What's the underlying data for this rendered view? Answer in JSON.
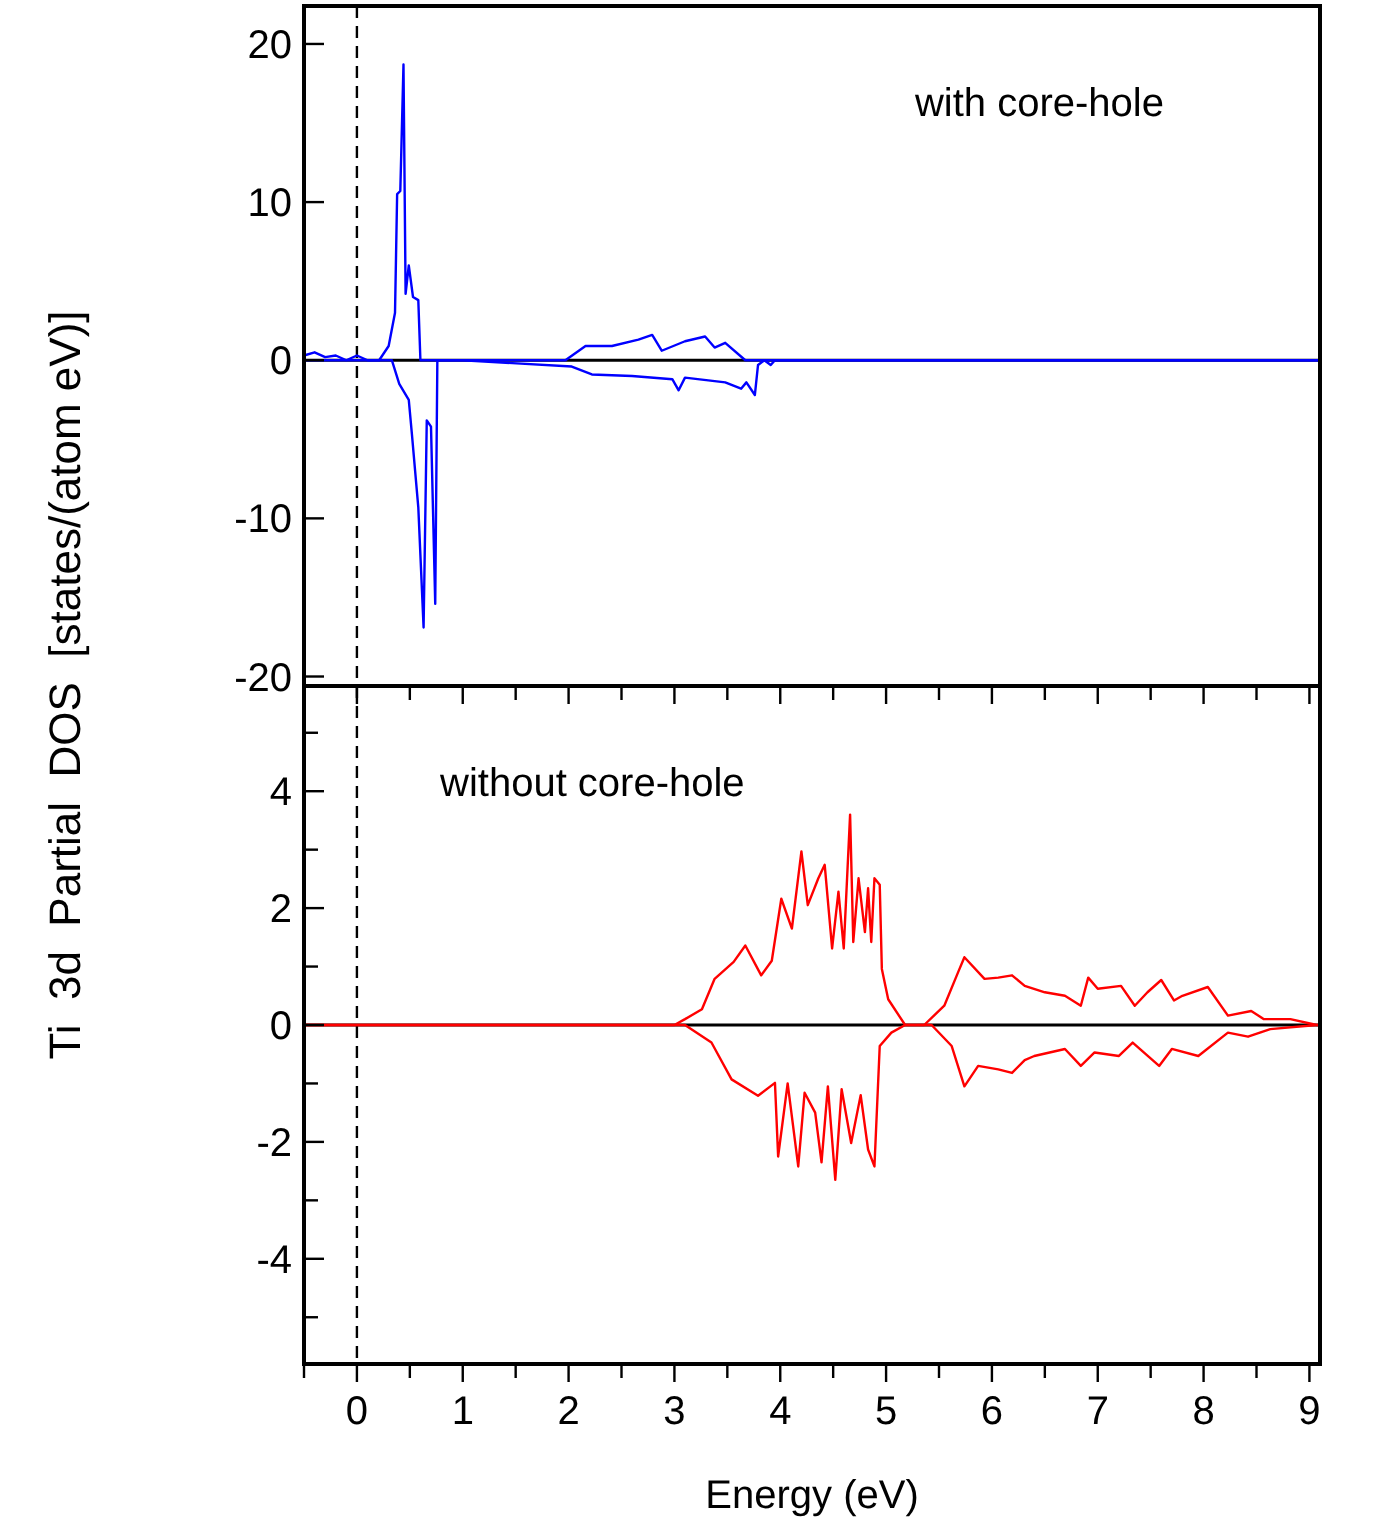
{
  "chart_data": [
    {
      "type": "line",
      "ylabel": "Ti  3d  Partial  DOS  [states/(atom eV)]",
      "annotations": [
        "with core-hole"
      ],
      "xlim": [
        -0.5,
        9.1
      ],
      "ylim": [
        -20.6,
        22.4
      ],
      "tick_labels": "y",
      "grid": false,
      "marker": "none",
      "line_style": "solid",
      "xticks": [
        {
          "value": -0.5,
          "label": null
        },
        0,
        {
          "value": 0.5,
          "label": null
        },
        1,
        {
          "value": 1.5,
          "label": null
        },
        2,
        {
          "value": 2.5,
          "label": null
        },
        3,
        {
          "value": 3.5,
          "label": null
        },
        4,
        {
          "value": 4.5,
          "label": null
        },
        5,
        {
          "value": 5.5,
          "label": null
        },
        6,
        {
          "value": 6.5,
          "label": null
        },
        7,
        {
          "value": 7.5,
          "label": null
        },
        8,
        {
          "value": 8.5,
          "label": null
        },
        9
      ],
      "yticks": [
        -20,
        -10,
        0,
        10,
        20
      ],
      "ref_lines": [
        {
          "axis": "x",
          "value": 0,
          "label": null,
          "color": "#000000",
          "line_style": "dashed"
        },
        {
          "axis": "y",
          "value": 0,
          "label": null,
          "color": "#000000",
          "line_style": "solid"
        }
      ],
      "series": [
        {
          "color": "#0000ff",
          "x": [
            -0.5,
            -0.4,
            -0.3,
            -0.2,
            -0.1,
            0,
            0.1,
            0.21,
            0.3,
            0.36,
            0.38,
            0.41,
            0.44,
            0.46,
            0.49,
            0.53,
            0.58,
            0.6,
            1.0,
            1.97,
            2.16,
            2.41,
            2.66,
            2.79,
            2.88,
            3.1,
            3.29,
            3.38,
            3.48,
            3.67,
            9.1
          ],
          "values": [
            0.3,
            0.5,
            0.2,
            0.3,
            0,
            0.3,
            0,
            0,
            0.9,
            3,
            10.5,
            10.7,
            18.7,
            4.2,
            6,
            4,
            3.8,
            0,
            0,
            0,
            0.9,
            0.9,
            1.3,
            1.6,
            0.6,
            1.2,
            1.5,
            0.8,
            1.1,
            0,
            0
          ]
        },
        {
          "color": "#0000ff",
          "x": [
            -0.5,
            0.33,
            0.4,
            0.49,
            0.52,
            0.58,
            0.63,
            0.66,
            0.7,
            0.74,
            0.76,
            1.0,
            2.03,
            2.22,
            2.6,
            2.98,
            3.04,
            3.1,
            3.48,
            3.63,
            3.68,
            3.76,
            3.79,
            3.85,
            3.91,
            3.95,
            9.1
          ],
          "values": [
            0,
            0,
            -1.5,
            -2.5,
            -4.7,
            -9.3,
            -16.9,
            -3.8,
            -4.2,
            -15.4,
            0,
            0,
            -0.4,
            -0.9,
            -1.0,
            -1.2,
            -1.9,
            -1.1,
            -1.4,
            -1.8,
            -1.4,
            -2.2,
            -0.3,
            0,
            -0.3,
            0,
            0
          ]
        }
      ]
    },
    {
      "type": "line",
      "xlabel": "Energy (eV)",
      "annotations": [
        "without core-hole"
      ],
      "xlim": [
        -0.5,
        9.1
      ],
      "ylim": [
        -5.8,
        5.8
      ],
      "grid": false,
      "marker": "none",
      "line_style": "solid",
      "xticks": [
        {
          "value": -0.5,
          "label": null
        },
        0,
        {
          "value": 0.5,
          "label": null
        },
        1,
        {
          "value": 1.5,
          "label": null
        },
        2,
        {
          "value": 2.5,
          "label": null
        },
        3,
        {
          "value": 3.5,
          "label": null
        },
        4,
        {
          "value": 4.5,
          "label": null
        },
        5,
        {
          "value": 5.5,
          "label": null
        },
        6,
        {
          "value": 6.5,
          "label": null
        },
        7,
        {
          "value": 7.5,
          "label": null
        },
        8,
        {
          "value": 8.5,
          "label": null
        },
        9
      ],
      "yticks": [
        {
          "value": -5,
          "label": null
        },
        -4,
        {
          "value": -3,
          "label": null
        },
        -2,
        {
          "value": -1,
          "label": null
        },
        0,
        {
          "value": 1,
          "label": null
        },
        2,
        {
          "value": 3,
          "label": null
        },
        4,
        {
          "value": 5,
          "label": null
        }
      ],
      "ref_lines": [
        {
          "axis": "x",
          "value": 0,
          "label": null,
          "color": "#000000",
          "line_style": "dashed"
        },
        {
          "axis": "y",
          "value": 0,
          "label": null,
          "color": "#000000",
          "line_style": "solid"
        }
      ],
      "series": [
        {
          "color": "#ff0000",
          "x": [
            -0.5,
            3.0,
            3.1,
            3.26,
            3.38,
            3.56,
            3.67,
            3.82,
            3.92,
            4.01,
            4.11,
            4.2,
            4.26,
            4.36,
            4.42,
            4.49,
            4.55,
            4.6,
            4.66,
            4.69,
            4.74,
            4.8,
            4.83,
            4.86,
            4.89,
            4.94,
            4.96,
            5.02,
            5.18,
            5.36,
            5.55,
            5.68,
            5.74,
            5.93,
            6.06,
            6.19,
            6.31,
            6.5,
            6.69,
            6.84,
            6.91,
            7.0,
            7.22,
            7.35,
            7.47,
            7.6,
            7.72,
            7.8,
            8.04,
            8.23,
            8.45,
            8.57,
            8.82,
            9.07,
            9.1
          ],
          "values": [
            0,
            0,
            0.1,
            0.27,
            0.79,
            1.08,
            1.36,
            0.85,
            1.1,
            2.16,
            1.65,
            2.97,
            2.05,
            2.51,
            2.74,
            1.31,
            2.28,
            1.31,
            3.6,
            1.42,
            2.51,
            1.59,
            2.34,
            1.42,
            2.51,
            2.4,
            0.96,
            0.44,
            0,
            0,
            0.33,
            0.9,
            1.16,
            0.79,
            0.81,
            0.85,
            0.67,
            0.56,
            0.5,
            0.33,
            0.81,
            0.62,
            0.67,
            0.33,
            0.56,
            0.77,
            0.42,
            0.5,
            0.65,
            0.16,
            0.24,
            0.1,
            0.1,
            0,
            0
          ]
        },
        {
          "color": "#ff0000",
          "x": [
            -0.5,
            3.0,
            3.1,
            3.35,
            3.54,
            3.79,
            3.95,
            3.98,
            4.07,
            4.17,
            4.23,
            4.33,
            4.39,
            4.45,
            4.52,
            4.58,
            4.67,
            4.76,
            4.83,
            4.89,
            4.94,
            5.05,
            5.18,
            5.43,
            5.62,
            5.74,
            5.87,
            6.06,
            6.19,
            6.31,
            6.4,
            6.69,
            6.84,
            6.97,
            7.2,
            7.33,
            7.58,
            7.7,
            7.95,
            8.23,
            8.42,
            8.63,
            9.07,
            9.1
          ],
          "values": [
            0,
            0,
            0,
            -0.3,
            -0.93,
            -1.21,
            -0.99,
            -2.25,
            -1.0,
            -2.42,
            -1.16,
            -1.5,
            -2.35,
            -1.05,
            -2.65,
            -1.1,
            -2.02,
            -1.2,
            -2.13,
            -2.42,
            -0.36,
            -0.13,
            0,
            0,
            -0.36,
            -1.05,
            -0.7,
            -0.76,
            -0.82,
            -0.6,
            -0.53,
            -0.41,
            -0.7,
            -0.47,
            -0.53,
            -0.3,
            -0.7,
            -0.41,
            -0.53,
            -0.13,
            -0.2,
            -0.07,
            0,
            0
          ]
        }
      ]
    }
  ]
}
